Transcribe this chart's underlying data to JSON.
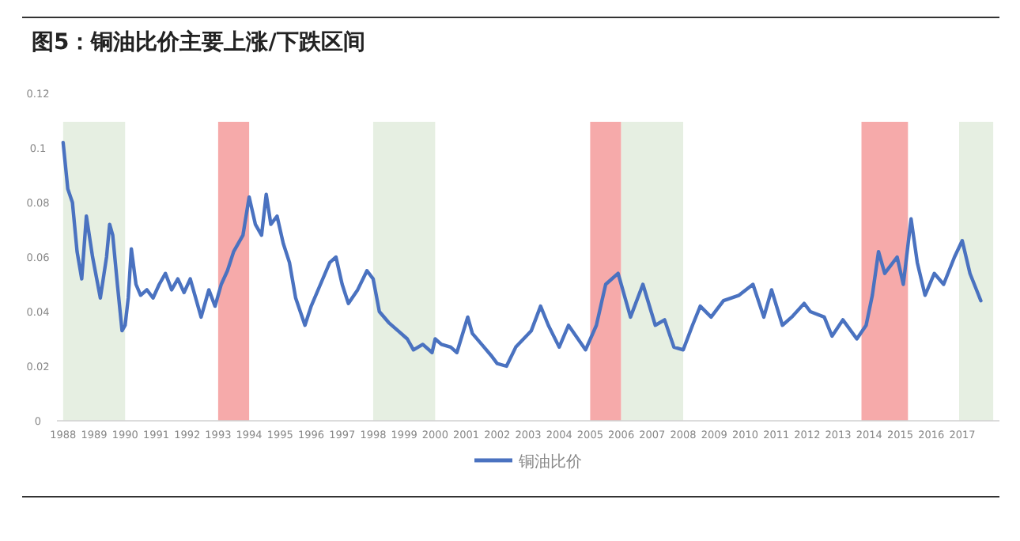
{
  "chart_data": {
    "type": "line",
    "title": "图5：铜油比价主要上涨/下跌区间",
    "x": [
      1988.0,
      1988.15,
      1988.3,
      1988.45,
      1988.6,
      1988.75,
      1988.95,
      1989.2,
      1989.4,
      1989.5,
      1989.6,
      1989.75,
      1989.9,
      1990.0,
      1990.1,
      1990.2,
      1990.35,
      1990.5,
      1990.7,
      1990.9,
      1991.1,
      1991.3,
      1991.5,
      1991.7,
      1991.9,
      1992.1,
      1992.3,
      1992.45,
      1992.7,
      1992.9,
      1993.1,
      1993.3,
      1993.5,
      1993.8,
      1994.0,
      1994.2,
      1994.4,
      1994.55,
      1994.7,
      1994.9,
      1995.1,
      1995.3,
      1995.5,
      1995.8,
      1996.0,
      1996.3,
      1996.6,
      1996.8,
      1997.0,
      1997.2,
      1997.5,
      1997.8,
      1998.0,
      1998.2,
      1998.5,
      1998.8,
      1999.1,
      1999.3,
      1999.6,
      1999.9,
      2000.0,
      2000.2,
      2000.5,
      2000.7,
      2001.05,
      2001.2,
      2001.5,
      2001.8,
      2002.0,
      2002.3,
      2002.6,
      2003.1,
      2003.4,
      2003.65,
      2004.0,
      2004.3,
      2004.85,
      2005.2,
      2005.5,
      2005.9,
      2006.3,
      2006.7,
      2007.1,
      2007.4,
      2007.7,
      2008.0,
      2008.3,
      2008.55,
      2008.9,
      2009.3,
      2009.8,
      2010.25,
      2010.6,
      2010.85,
      2011.2,
      2011.5,
      2011.9,
      2012.1,
      2012.55,
      2012.8,
      2013.15,
      2013.6,
      2013.9,
      2014.1,
      2014.3,
      2014.5,
      2014.9,
      2015.1,
      2015.35,
      2015.55,
      2015.8,
      2016.1,
      2016.4,
      2016.75,
      2017.0,
      2017.25,
      2017.6
    ],
    "series": [
      {
        "name": "铜油比价",
        "color": "#4a72c0",
        "values": [
          0.102,
          0.085,
          0.08,
          0.062,
          0.052,
          0.075,
          0.06,
          0.045,
          0.06,
          0.072,
          0.068,
          0.05,
          0.033,
          0.035,
          0.045,
          0.063,
          0.05,
          0.046,
          0.048,
          0.045,
          0.05,
          0.054,
          0.048,
          0.052,
          0.047,
          0.052,
          0.044,
          0.038,
          0.048,
          0.042,
          0.05,
          0.055,
          0.062,
          0.068,
          0.082,
          0.072,
          0.068,
          0.083,
          0.072,
          0.075,
          0.065,
          0.058,
          0.045,
          0.035,
          0.042,
          0.05,
          0.058,
          0.06,
          0.05,
          0.043,
          0.048,
          0.055,
          0.052,
          0.04,
          0.036,
          0.033,
          0.03,
          0.026,
          0.028,
          0.025,
          0.03,
          0.028,
          0.027,
          0.025,
          0.038,
          0.032,
          0.028,
          0.024,
          0.021,
          0.02,
          0.027,
          0.033,
          0.042,
          0.035,
          0.027,
          0.035,
          0.026,
          0.035,
          0.05,
          0.054,
          0.038,
          0.05,
          0.035,
          0.037,
          0.027,
          0.026,
          0.035,
          0.042,
          0.038,
          0.044,
          0.046,
          0.05,
          0.038,
          0.048,
          0.035,
          0.038,
          0.043,
          0.04,
          0.038,
          0.031,
          0.037,
          0.03,
          0.035,
          0.046,
          0.062,
          0.054,
          0.06,
          0.05,
          0.074,
          0.058,
          0.046,
          0.054,
          0.05,
          0.06,
          0.066,
          0.054,
          0.044
        ]
      }
    ],
    "xlim": [
      1987.8,
      2018.2
    ],
    "ylim": [
      0,
      0.12
    ],
    "xticks": [
      1988,
      1989,
      1990,
      1991,
      1992,
      1993,
      1994,
      1995,
      1996,
      1997,
      1998,
      1999,
      2000,
      2001,
      2002,
      2003,
      2004,
      2005,
      2006,
      2007,
      2008,
      2009,
      2010,
      2011,
      2012,
      2013,
      2014,
      2015,
      2016,
      2017
    ],
    "yticks": [
      0,
      0.02,
      0.04,
      0.06,
      {
        "value": 0.08,
        "label": "0.08"
      },
      0.1,
      0.12
    ],
    "bands": [
      {
        "axis": "x",
        "from": 1988,
        "to": 1990,
        "color": "#e6efe2"
      },
      {
        "axis": "x",
        "from": 1993,
        "to": 1994,
        "color": "#f6aaaa"
      },
      {
        "axis": "x",
        "from": 1998,
        "to": 2000,
        "color": "#e6efe2"
      },
      {
        "axis": "x",
        "from": 2005,
        "to": 2006,
        "color": "#f6aaaa"
      },
      {
        "axis": "x",
        "from": 2006,
        "to": 2008,
        "color": "#e6efe2"
      },
      {
        "axis": "x",
        "from": 2013.75,
        "to": 2015.25,
        "color": "#f6aaaa"
      },
      {
        "axis": "x",
        "from": 2016.9,
        "to": 2018,
        "color": "#e6efe2"
      }
    ],
    "legend": "bottom"
  }
}
